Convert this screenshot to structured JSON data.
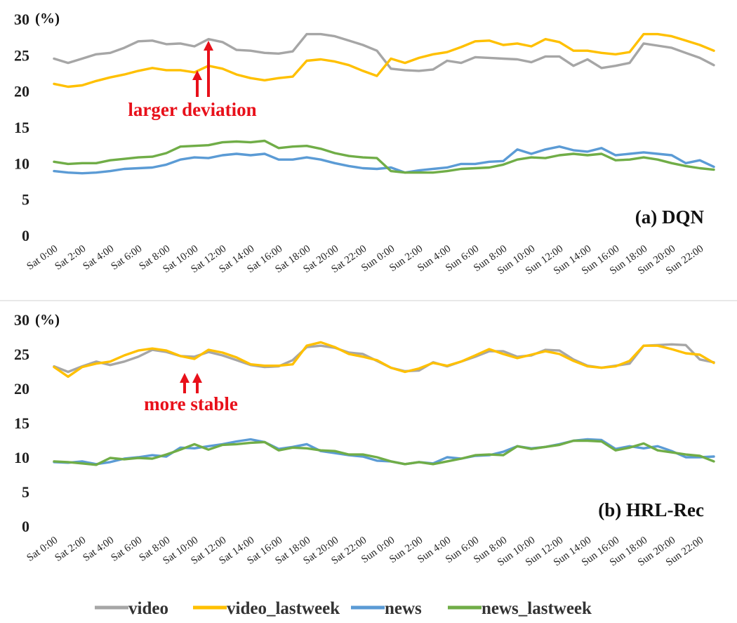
{
  "chart_data": [
    {
      "type": "line",
      "title": "(a) DQN",
      "ylabel": "(%)",
      "ylim": [
        0,
        30
      ],
      "yticks": [
        0,
        5,
        10,
        15,
        20,
        25,
        30
      ],
      "grid": false,
      "x_tick_labels": [
        "Sat  0:00",
        "Sat  2:00",
        "Sat  4:00",
        "Sat  6:00",
        "Sat  8:00",
        "Sat 10:00",
        "Sat 12:00",
        "Sat 14:00",
        "Sat 16:00",
        "Sat 18:00",
        "Sat 20:00",
        "Sat 22:00",
        "Sun  0:00",
        "Sun  2:00",
        "Sun  4:00",
        "Sun  6:00",
        "Sun  8:00",
        "Sun 10:00",
        "Sun 12:00",
        "Sun 14:00",
        "Sun 16:00",
        "Sun 18:00",
        "Sun 20:00",
        "Sun 22:00"
      ],
      "annotation": {
        "text": "larger deviation",
        "arrow_hours": [
          10.2,
          11.0
        ]
      },
      "series": [
        {
          "name": "video",
          "color": "#a6a6a6",
          "x": [
            0,
            1,
            2,
            3,
            4,
            5,
            6,
            7,
            8,
            9,
            10,
            11,
            12,
            13,
            14,
            15,
            16,
            17,
            18,
            19,
            20,
            21,
            22,
            23,
            24,
            25,
            26,
            27,
            28,
            29,
            30,
            31,
            32,
            33,
            34,
            35,
            36,
            37,
            38,
            39,
            40,
            41,
            42,
            43,
            44,
            45,
            46,
            47
          ],
          "values": [
            24.5,
            23.9,
            24.5,
            25.1,
            25.3,
            26.0,
            26.9,
            27.0,
            26.5,
            26.6,
            26.2,
            27.2,
            26.8,
            25.7,
            25.6,
            25.3,
            25.2,
            25.5,
            27.9,
            27.9,
            27.6,
            27.0,
            26.4,
            25.6,
            23.1,
            22.9,
            22.8,
            23.0,
            24.2,
            23.9,
            24.7,
            24.6,
            24.5,
            24.4,
            24.0,
            24.8,
            24.8,
            23.5,
            24.4,
            23.2,
            23.5,
            23.9,
            26.6,
            26.3,
            26.0,
            25.3,
            24.6,
            23.6
          ]
        },
        {
          "name": "video_lastweek",
          "color": "#ffc000",
          "x": [
            0,
            1,
            2,
            3,
            4,
            5,
            6,
            7,
            8,
            9,
            10,
            11,
            12,
            13,
            14,
            15,
            16,
            17,
            18,
            19,
            20,
            21,
            22,
            23,
            24,
            25,
            26,
            27,
            28,
            29,
            30,
            31,
            32,
            33,
            34,
            35,
            36,
            37,
            38,
            39,
            40,
            41,
            42,
            43,
            44,
            45,
            46,
            47
          ],
          "values": [
            21.0,
            20.6,
            20.8,
            21.4,
            21.9,
            22.3,
            22.8,
            23.2,
            22.9,
            22.9,
            22.6,
            23.5,
            23.1,
            22.3,
            21.8,
            21.5,
            21.8,
            22.0,
            24.2,
            24.4,
            24.1,
            23.6,
            22.8,
            22.1,
            24.5,
            23.9,
            24.6,
            25.1,
            25.4,
            26.1,
            26.9,
            27.0,
            26.4,
            26.6,
            26.2,
            27.2,
            26.8,
            25.6,
            25.6,
            25.3,
            25.1,
            25.4,
            27.9,
            27.9,
            27.6,
            27.0,
            26.4,
            25.6
          ]
        },
        {
          "name": "news",
          "color": "#5b9bd5",
          "x": [
            0,
            1,
            2,
            3,
            4,
            5,
            6,
            7,
            8,
            9,
            10,
            11,
            12,
            13,
            14,
            15,
            16,
            17,
            18,
            19,
            20,
            21,
            22,
            23,
            24,
            25,
            26,
            27,
            28,
            29,
            30,
            31,
            32,
            33,
            34,
            35,
            36,
            37,
            38,
            39,
            40,
            41,
            42,
            43,
            44,
            45,
            46,
            47
          ],
          "values": [
            8.9,
            8.7,
            8.6,
            8.7,
            8.9,
            9.2,
            9.3,
            9.4,
            9.8,
            10.5,
            10.8,
            10.7,
            11.1,
            11.3,
            11.1,
            11.3,
            10.5,
            10.5,
            10.8,
            10.5,
            10.0,
            9.6,
            9.3,
            9.2,
            9.4,
            8.7,
            9.0,
            9.2,
            9.4,
            9.9,
            9.9,
            10.2,
            10.3,
            11.9,
            11.3,
            11.9,
            12.3,
            11.8,
            11.6,
            12.1,
            11.1,
            11.3,
            11.5,
            11.3,
            11.1,
            10.0,
            10.4,
            9.5
          ]
        },
        {
          "name": "news_lastweek",
          "color": "#70ad47",
          "x": [
            0,
            1,
            2,
            3,
            4,
            5,
            6,
            7,
            8,
            9,
            10,
            11,
            12,
            13,
            14,
            15,
            16,
            17,
            18,
            19,
            20,
            21,
            22,
            23,
            24,
            25,
            26,
            27,
            28,
            29,
            30,
            31,
            32,
            33,
            34,
            35,
            36,
            37,
            38,
            39,
            40,
            41,
            42,
            43,
            44,
            45,
            46,
            47
          ],
          "values": [
            10.2,
            9.9,
            10.0,
            10.0,
            10.4,
            10.6,
            10.8,
            10.9,
            11.4,
            12.3,
            12.4,
            12.5,
            12.9,
            13.0,
            12.9,
            13.1,
            12.1,
            12.3,
            12.4,
            12.0,
            11.4,
            11.0,
            10.8,
            10.7,
            8.9,
            8.7,
            8.7,
            8.7,
            8.9,
            9.2,
            9.3,
            9.4,
            9.8,
            10.5,
            10.8,
            10.7,
            11.1,
            11.3,
            11.1,
            11.3,
            10.4,
            10.5,
            10.8,
            10.5,
            10.0,
            9.6,
            9.3,
            9.1
          ]
        }
      ]
    },
    {
      "type": "line",
      "title": "(b) HRL-Rec",
      "ylabel": "(%)",
      "ylim": [
        0,
        30
      ],
      "yticks": [
        0,
        5,
        10,
        15,
        20,
        25,
        30
      ],
      "grid": false,
      "x_tick_labels": [
        "Sat  0:00",
        "Sat  2:00",
        "Sat  4:00",
        "Sat  6:00",
        "Sat  8:00",
        "Sat 10:00",
        "Sat 12:00",
        "Sat 14:00",
        "Sat 16:00",
        "Sat 18:00",
        "Sat 20:00",
        "Sat 22:00",
        "Sun  0:00",
        "Sun  2:00",
        "Sun  4:00",
        "Sun  6:00",
        "Sun  8:00",
        "Sun 10:00",
        "Sun 12:00",
        "Sun 14:00",
        "Sun 16:00",
        "Sun 18:00",
        "Sun 20:00",
        "Sun 22:00"
      ],
      "annotation": {
        "text": "more stable",
        "arrow_hours": [
          9.3,
          10.2
        ]
      },
      "series": [
        {
          "name": "video",
          "color": "#a6a6a6",
          "x": [
            0,
            1,
            2,
            3,
            4,
            5,
            6,
            7,
            8,
            9,
            10,
            11,
            12,
            13,
            14,
            15,
            16,
            17,
            18,
            19,
            20,
            21,
            22,
            23,
            24,
            25,
            26,
            27,
            28,
            29,
            30,
            31,
            32,
            33,
            34,
            35,
            36,
            37,
            38,
            39,
            40,
            41,
            42,
            43,
            44,
            45,
            46,
            47
          ],
          "values": [
            23.2,
            22.4,
            23.2,
            23.9,
            23.4,
            23.9,
            24.6,
            25.6,
            25.3,
            24.7,
            24.6,
            25.3,
            24.8,
            24.1,
            23.4,
            23.1,
            23.2,
            24.1,
            26.0,
            26.2,
            25.9,
            25.2,
            25.0,
            24.0,
            23.0,
            22.5,
            22.6,
            23.8,
            23.2,
            23.9,
            24.6,
            25.4,
            25.4,
            24.6,
            24.8,
            25.6,
            25.5,
            24.2,
            23.3,
            23.0,
            23.3,
            23.6,
            26.2,
            26.3,
            26.4,
            26.3,
            24.2,
            23.8
          ]
        },
        {
          "name": "video_lastweek",
          "color": "#ffc000",
          "x": [
            0,
            1,
            2,
            3,
            4,
            5,
            6,
            7,
            8,
            9,
            10,
            11,
            12,
            13,
            14,
            15,
            16,
            17,
            18,
            19,
            20,
            21,
            22,
            23,
            24,
            25,
            26,
            27,
            28,
            29,
            30,
            31,
            32,
            33,
            34,
            35,
            36,
            37,
            38,
            39,
            40,
            41,
            42,
            43,
            44,
            45,
            46,
            47
          ],
          "values": [
            23.1,
            21.7,
            23.1,
            23.6,
            23.9,
            24.8,
            25.5,
            25.8,
            25.5,
            24.7,
            24.3,
            25.6,
            25.2,
            24.5,
            23.5,
            23.3,
            23.3,
            23.5,
            26.2,
            26.7,
            26.0,
            25.0,
            24.6,
            24.1,
            23.0,
            22.4,
            22.9,
            23.7,
            23.3,
            23.9,
            24.8,
            25.7,
            25.0,
            24.4,
            24.9,
            25.4,
            25.0,
            24.0,
            23.2,
            23.0,
            23.2,
            24.0,
            26.2,
            26.2,
            25.7,
            25.1,
            24.9,
            23.7
          ]
        },
        {
          "name": "news",
          "color": "#5b9bd5",
          "x": [
            0,
            1,
            2,
            3,
            4,
            5,
            6,
            7,
            8,
            9,
            10,
            11,
            12,
            13,
            14,
            15,
            16,
            17,
            18,
            19,
            20,
            21,
            22,
            23,
            24,
            25,
            26,
            27,
            28,
            29,
            30,
            31,
            32,
            33,
            34,
            35,
            36,
            37,
            38,
            39,
            40,
            41,
            42,
            43,
            44,
            45,
            46,
            47
          ],
          "values": [
            9.3,
            9.2,
            9.4,
            9.0,
            9.3,
            9.8,
            10.0,
            10.3,
            10.1,
            11.4,
            11.3,
            11.6,
            11.9,
            12.3,
            12.6,
            12.2,
            11.2,
            11.5,
            11.9,
            10.9,
            10.6,
            10.3,
            10.1,
            9.5,
            9.4,
            9.0,
            9.3,
            9.1,
            10.0,
            9.8,
            10.2,
            10.3,
            10.8,
            11.6,
            11.3,
            11.5,
            11.9,
            12.4,
            12.6,
            12.5,
            11.2,
            11.6,
            11.3,
            11.6,
            10.9,
            10.0,
            10.0,
            10.1
          ]
        },
        {
          "name": "news_lastweek",
          "color": "#70ad47",
          "x": [
            0,
            1,
            2,
            3,
            4,
            5,
            6,
            7,
            8,
            9,
            10,
            11,
            12,
            13,
            14,
            15,
            16,
            17,
            18,
            19,
            20,
            21,
            22,
            23,
            24,
            25,
            26,
            27,
            28,
            29,
            30,
            31,
            32,
            33,
            34,
            35,
            36,
            37,
            38,
            39,
            40,
            41,
            42,
            43,
            44,
            45,
            46,
            47
          ],
          "values": [
            9.4,
            9.3,
            9.1,
            8.9,
            9.9,
            9.7,
            9.9,
            9.8,
            10.4,
            11.1,
            11.9,
            11.1,
            11.8,
            11.9,
            12.1,
            12.2,
            11.0,
            11.4,
            11.3,
            11.0,
            10.9,
            10.4,
            10.4,
            10.0,
            9.4,
            9.0,
            9.3,
            9.0,
            9.4,
            9.8,
            10.3,
            10.4,
            10.3,
            11.6,
            11.2,
            11.5,
            11.8,
            12.4,
            12.4,
            12.3,
            11.0,
            11.4,
            12.0,
            11.0,
            10.7,
            10.4,
            10.2,
            9.4
          ]
        }
      ]
    }
  ],
  "legend": [
    {
      "label": "video",
      "color": "#a6a6a6"
    },
    {
      "label": "video_lastweek",
      "color": "#ffc000"
    },
    {
      "label": "news",
      "color": "#5b9bd5"
    },
    {
      "label": "news_lastweek",
      "color": "#70ad47"
    }
  ]
}
